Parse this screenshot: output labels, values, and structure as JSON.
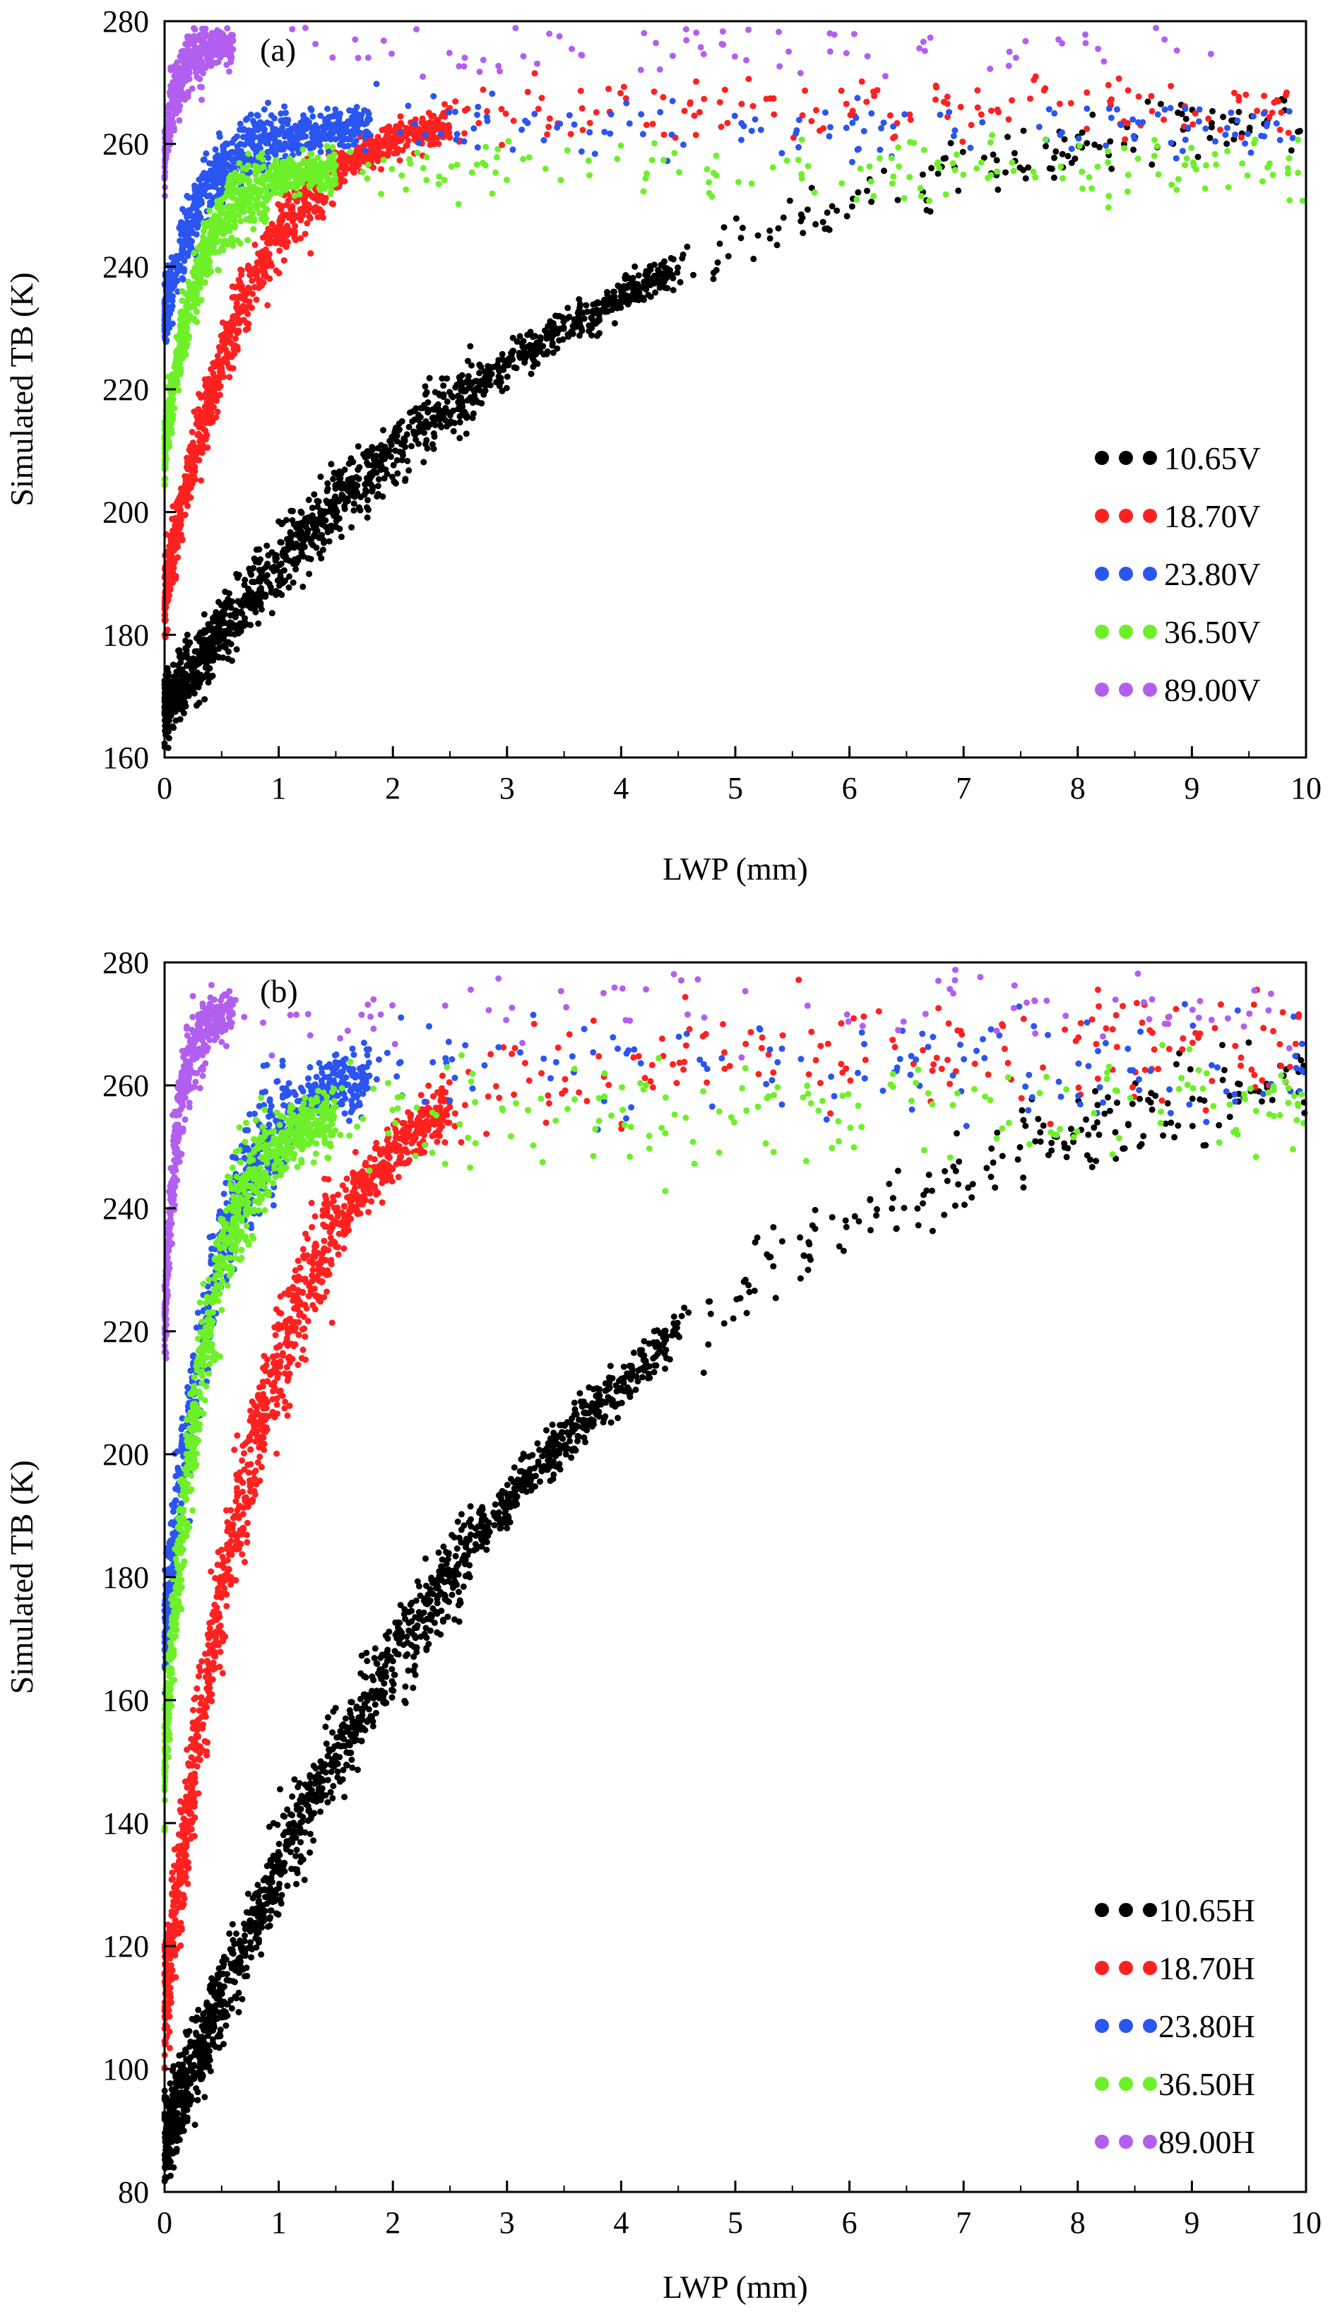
{
  "colors": {
    "10.65": "#000000",
    "18.70": "#ff2020",
    "23.80": "#2a55f0",
    "36.50": "#6ef029",
    "89.00": "#b25ff0"
  },
  "chart_data": [
    {
      "type": "scatter",
      "panel_label": "(a)",
      "xlabel": "LWP (mm)",
      "ylabel": "Simulated TB (K)",
      "xlim": [
        0,
        10
      ],
      "ylim": [
        160,
        280
      ],
      "xticks": [
        0,
        1,
        2,
        3,
        4,
        5,
        6,
        7,
        8,
        9,
        10
      ],
      "yticks": [
        160,
        180,
        200,
        220,
        240,
        260,
        280
      ],
      "legend_position": "lower-right",
      "series": [
        {
          "name": "10.65V",
          "color_key": "10.65",
          "tb0": 168,
          "tbinf": 274,
          "scale": 4.0,
          "spread": 3,
          "cloud_max": 4.5
        },
        {
          "name": "18.70V",
          "color_key": "18.70",
          "tb0": 186,
          "tbinf": 266,
          "scale": 0.75,
          "spread": 3,
          "cloud_max": 2.5
        },
        {
          "name": "23.80V",
          "color_key": "23.80",
          "tb0": 232,
          "tbinf": 263,
          "scale": 0.35,
          "spread": 3,
          "cloud_max": 1.8
        },
        {
          "name": "36.50V",
          "color_key": "36.50",
          "tb0": 210,
          "tbinf": 256,
          "scale": 0.3,
          "spread": 3,
          "cloud_max": 1.5
        },
        {
          "name": "89.00V",
          "color_key": "89.00",
          "tb0": 258,
          "tbinf": 276,
          "scale": 0.1,
          "spread": 3,
          "cloud_max": 0.6
        }
      ]
    },
    {
      "type": "scatter",
      "panel_label": "(b)",
      "xlabel": "LWP (mm)",
      "ylabel": "Simulated TB (K)",
      "xlim": [
        0,
        10
      ],
      "ylim": [
        80,
        280
      ],
      "xticks": [
        0,
        1,
        2,
        3,
        4,
        5,
        6,
        7,
        8,
        9,
        10
      ],
      "yticks": [
        80,
        100,
        120,
        140,
        160,
        180,
        200,
        220,
        240,
        260,
        280
      ],
      "legend_position": "lower-right",
      "series": [
        {
          "name": "10.65H",
          "color_key": "10.65",
          "tb0": 88,
          "tbinf": 272,
          "scale": 3.6,
          "spread": 4,
          "cloud_max": 4.5
        },
        {
          "name": "18.70H",
          "color_key": "18.70",
          "tb0": 110,
          "tbinf": 266,
          "scale": 0.9,
          "spread": 5,
          "cloud_max": 2.5
        },
        {
          "name": "23.80H",
          "color_key": "23.80",
          "tb0": 170,
          "tbinf": 263,
          "scale": 0.45,
          "spread": 5,
          "cloud_max": 1.8
        },
        {
          "name": "36.50H",
          "color_key": "36.50",
          "tb0": 150,
          "tbinf": 256,
          "scale": 0.35,
          "spread": 5,
          "cloud_max": 1.5
        },
        {
          "name": "89.00H",
          "color_key": "89.00",
          "tb0": 220,
          "tbinf": 272,
          "scale": 0.12,
          "spread": 4,
          "cloud_max": 0.6
        }
      ]
    }
  ]
}
